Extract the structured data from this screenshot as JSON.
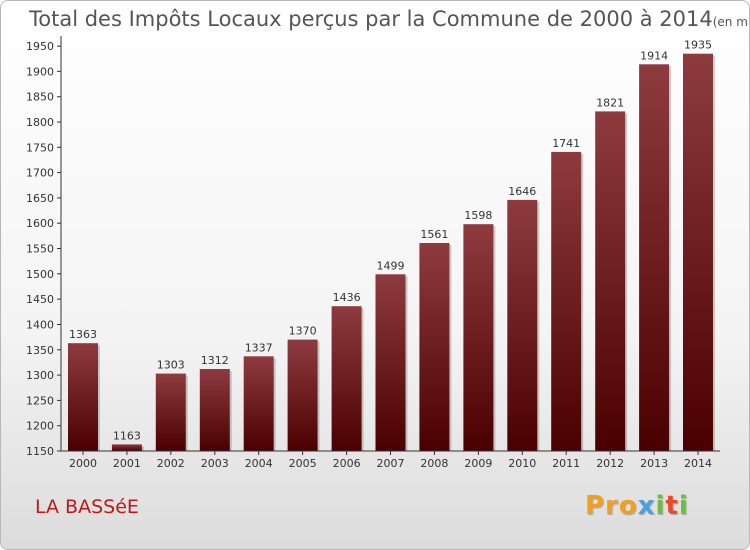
{
  "title": {
    "main": "Total des Impôts Locaux perçus par la Commune de 2000 à 2014",
    "unit": "(en milliers d'€)"
  },
  "commune": "LA BASSéE",
  "logo": {
    "p1": "Pro",
    "p2": "x",
    "p3": "i",
    "p4": "t",
    "p5": "i"
  },
  "chart_data": {
    "type": "bar",
    "title": "Total des Impôts Locaux perçus par la Commune de 2000 à 2014",
    "unit_label": "(en milliers d'€)",
    "categories": [
      "2000",
      "2001",
      "2002",
      "2003",
      "2004",
      "2005",
      "2006",
      "2007",
      "2008",
      "2009",
      "2010",
      "2011",
      "2012",
      "2013",
      "2014"
    ],
    "values": [
      1363,
      1163,
      1303,
      1312,
      1337,
      1370,
      1436,
      1499,
      1561,
      1598,
      1646,
      1741,
      1821,
      1914,
      1935
    ],
    "ylim": [
      1150,
      1960
    ],
    "yticks": [
      1150,
      1200,
      1250,
      1300,
      1350,
      1400,
      1450,
      1500,
      1550,
      1600,
      1650,
      1700,
      1750,
      1800,
      1850,
      1900,
      1950
    ],
    "xlabel": "",
    "ylabel": "",
    "grid": false,
    "colors": {
      "bar_top": "#8e3b3f",
      "bar_bottom": "#4a0000",
      "axis": "#333333",
      "tick_text": "#333333",
      "label_text": "#333333"
    }
  }
}
